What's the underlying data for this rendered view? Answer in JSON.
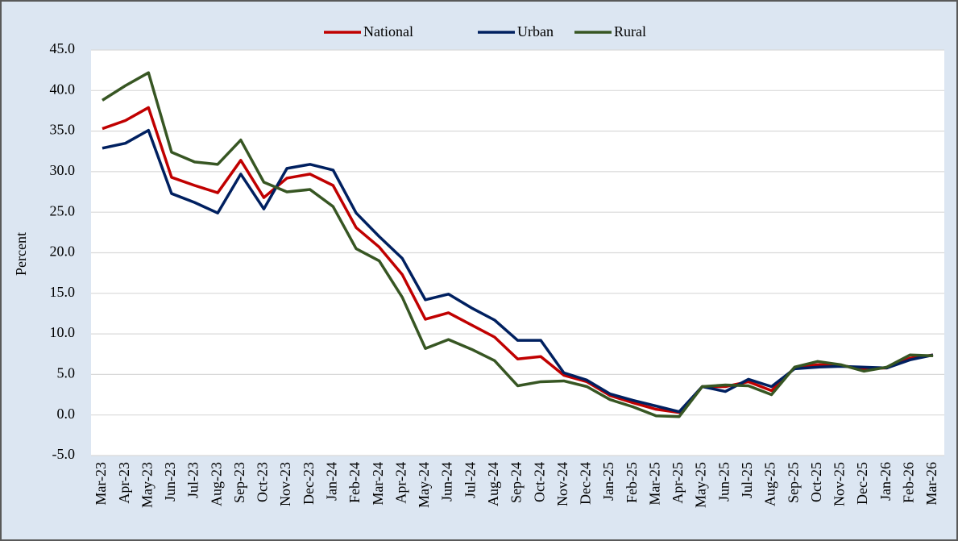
{
  "chart_data": {
    "type": "line",
    "y_label": "Percent",
    "categories": [
      "Mar-23",
      "Apr-23",
      "May-23",
      "Jun-23",
      "Jul-23",
      "Aug-23",
      "Sep-23",
      "Oct-23",
      "Nov-23",
      "Dec-23",
      "Jan-24",
      "Feb-24",
      "Mar-24",
      "Apr-24",
      "May-24",
      "Jun-24",
      "Jul-24",
      "Aug-24",
      "Sep-24",
      "Oct-24",
      "Nov-24",
      "Dec-24",
      "Jan-25",
      "Feb-25",
      "Mar-25",
      "Apr-25",
      "May-25",
      "Jun-25",
      "Jul-25",
      "Aug-25",
      "Sep-25",
      "Oct-25",
      "Nov-25",
      "Dec-25",
      "Jan-26",
      "Feb-26",
      "Mar-26"
    ],
    "series": [
      {
        "name": "National",
        "color": "#c00000",
        "values": [
          35.3,
          36.3,
          37.9,
          29.3,
          28.3,
          27.4,
          31.4,
          26.8,
          29.2,
          29.7,
          28.3,
          23.1,
          20.7,
          17.3,
          11.8,
          12.6,
          11.1,
          9.6,
          6.9,
          7.2,
          4.9,
          4.1,
          2.4,
          1.5,
          0.7,
          0.3,
          3.5,
          3.5,
          4.1,
          3.0,
          5.8,
          6.2,
          6.1,
          5.7,
          5.8,
          7.0,
          7.4
        ]
      },
      {
        "name": "Urban",
        "color": "#002060",
        "values": [
          32.9,
          33.5,
          35.1,
          27.3,
          26.2,
          24.9,
          29.7,
          25.4,
          30.4,
          30.9,
          30.2,
          24.9,
          22.0,
          19.3,
          14.2,
          14.9,
          13.2,
          11.7,
          9.2,
          9.2,
          5.2,
          4.3,
          2.6,
          1.8,
          1.1,
          0.4,
          3.5,
          2.9,
          4.4,
          3.5,
          5.7,
          5.9,
          6.0,
          5.9,
          5.8,
          6.8,
          7.4
        ]
      },
      {
        "name": "Rural",
        "color": "#375623",
        "values": [
          38.8,
          40.6,
          42.2,
          32.4,
          31.2,
          30.9,
          33.9,
          28.7,
          27.5,
          27.8,
          25.7,
          20.5,
          19.0,
          14.5,
          8.2,
          9.3,
          8.1,
          6.7,
          3.6,
          4.1,
          4.2,
          3.5,
          1.9,
          1.0,
          -0.1,
          -0.2,
          3.5,
          3.7,
          3.6,
          2.5,
          5.9,
          6.6,
          6.2,
          5.4,
          5.9,
          7.4,
          7.3
        ]
      }
    ],
    "ylim": [
      -5,
      45
    ],
    "yticks": [
      {
        "value": -5,
        "label": "-5.0"
      },
      {
        "value": 0,
        "label": "0.0"
      },
      {
        "value": 5,
        "label": "5.0"
      },
      {
        "value": 10,
        "label": "10.0"
      },
      {
        "value": 15,
        "label": "15.0"
      },
      {
        "value": 20,
        "label": "20.0"
      },
      {
        "value": 25,
        "label": "25.0"
      },
      {
        "value": 30,
        "label": "30.0"
      },
      {
        "value": 35,
        "label": "35.0"
      },
      {
        "value": 40,
        "label": "40.0"
      },
      {
        "value": 45,
        "label": "45.0"
      }
    ],
    "grid": true,
    "legend": "top"
  }
}
